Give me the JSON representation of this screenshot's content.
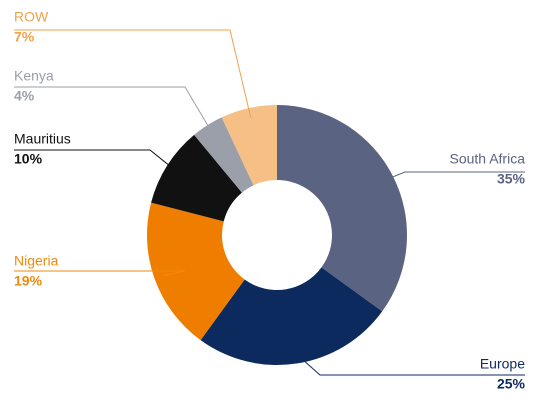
{
  "chart_data": {
    "type": "pie",
    "categories": [
      "South Africa",
      "Europe",
      "Nigeria",
      "Mauritius",
      "Kenya",
      "ROW"
    ],
    "values": [
      35,
      25,
      19,
      10,
      4,
      7
    ],
    "value_labels": [
      "35%",
      "25%",
      "19%",
      "10%",
      "4%",
      "7%"
    ],
    "colors": [
      "#5a6381",
      "#0d2a5f",
      "#ef7d00",
      "#111111",
      "#9a9fa9",
      "#f5bf86"
    ],
    "label_colors": [
      "#5a6381",
      "#0d2a5f",
      "#ef8a10",
      "#111111",
      "#9a9fa9",
      "#f0a24a"
    ]
  }
}
